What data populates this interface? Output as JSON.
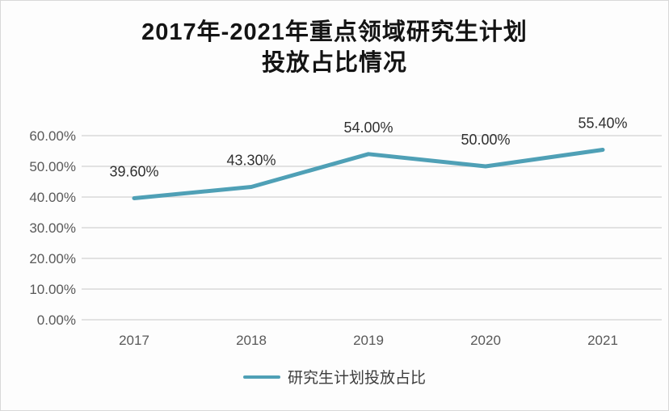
{
  "title": {
    "line1": "2017年-2021年重点领域研究生计划",
    "line2": "投放占比情况"
  },
  "chart_data": {
    "type": "line",
    "title": "2017年-2021年重点领域研究生计划投放占比情况",
    "categories": [
      "2017",
      "2018",
      "2019",
      "2020",
      "2021"
    ],
    "series": [
      {
        "name": "研究生计划投放占比",
        "values": [
          39.6,
          43.3,
          54.0,
          50.0,
          55.4
        ]
      }
    ],
    "data_labels": [
      "39.60%",
      "43.30%",
      "54.00%",
      "50.00%",
      "55.40%"
    ],
    "y_ticks": [
      "0.00%",
      "10.00%",
      "20.00%",
      "30.00%",
      "40.00%",
      "50.00%",
      "60.00%"
    ],
    "ylim": [
      0,
      60
    ],
    "grid": "horizontal",
    "legend_position": "bottom",
    "line_color": "#4FA0B6",
    "gridline_color": "#d9d9d9",
    "axis_label_color": "#595959",
    "data_label_color": "#303030"
  }
}
